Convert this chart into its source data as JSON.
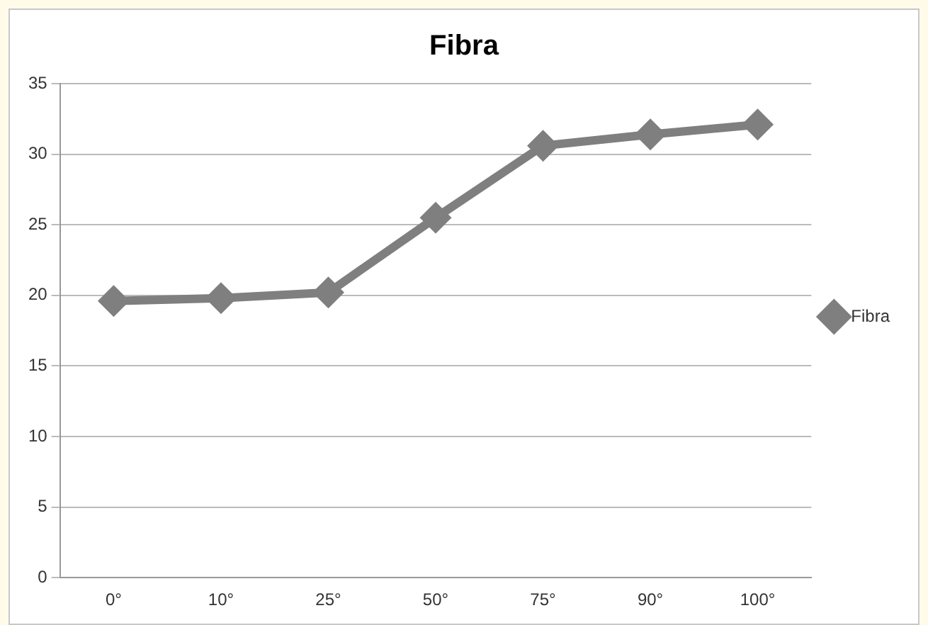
{
  "chart_data": {
    "type": "line",
    "title": "Fibra",
    "categories": [
      "0°",
      "10°",
      "25°",
      "50°",
      "75°",
      "90°",
      "100°"
    ],
    "series": [
      {
        "name": "Fibra",
        "color": "#7f7f7f",
        "values": [
          19.6,
          19.8,
          20.2,
          25.5,
          30.6,
          31.4,
          32.1
        ]
      }
    ],
    "ylim": [
      0,
      35
    ],
    "yticks": [
      0,
      5,
      10,
      15,
      20,
      25,
      30,
      35
    ],
    "grid": "y",
    "legend": "right",
    "marker": "diamond",
    "line_style": "solid"
  }
}
